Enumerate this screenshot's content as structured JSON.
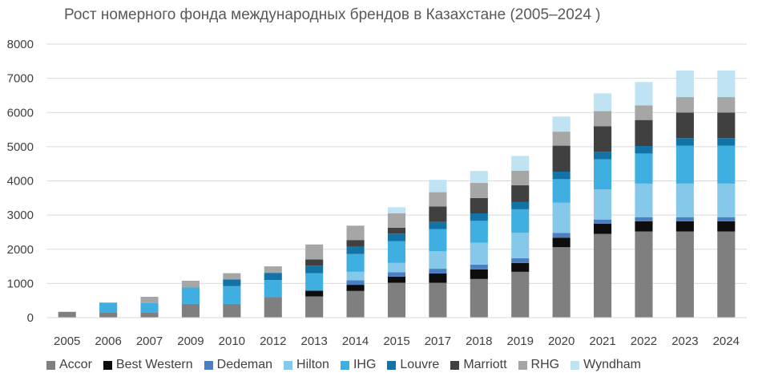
{
  "chart_data": {
    "type": "bar",
    "stacked": true,
    "title": "Рост номерного фонда международных брендов в Казахстане (2005–2024 )",
    "xlabel": "",
    "ylabel": "",
    "ylim": [
      0,
      8000
    ],
    "yticks": [
      0,
      1000,
      2000,
      3000,
      4000,
      5000,
      6000,
      7000,
      8000
    ],
    "grid": true,
    "legend_position": "bottom",
    "categories": [
      "2005",
      "2006",
      "2007",
      "2009",
      "2010",
      "2012",
      "2013",
      "2014",
      "2015",
      "2017",
      "2018",
      "2019",
      "2020",
      "2021",
      "2022",
      "2023",
      "2024"
    ],
    "series": [
      {
        "name": "Accor",
        "color": "#7f7f7f",
        "values": [
          170,
          150,
          150,
          400,
          400,
          600,
          620,
          780,
          1020,
          1020,
          1130,
          1340,
          2060,
          2450,
          2520,
          2520,
          2520
        ]
      },
      {
        "name": "Best Western",
        "color": "#0d0d0d",
        "values": [
          0,
          0,
          0,
          0,
          0,
          0,
          170,
          180,
          180,
          270,
          280,
          260,
          280,
          300,
          300,
          300,
          300
        ]
      },
      {
        "name": "Dedeman",
        "color": "#4a7fc1",
        "values": [
          0,
          0,
          0,
          0,
          0,
          0,
          0,
          130,
          130,
          140,
          140,
          140,
          140,
          120,
          120,
          120,
          120
        ]
      },
      {
        "name": "Hilton",
        "color": "#86c8ea",
        "values": [
          0,
          0,
          0,
          0,
          0,
          0,
          0,
          250,
          270,
          510,
          640,
          740,
          880,
          880,
          980,
          980,
          980
        ]
      },
      {
        "name": "IHG",
        "color": "#3faee0",
        "values": [
          0,
          290,
          280,
          480,
          520,
          500,
          510,
          520,
          640,
          650,
          640,
          690,
          690,
          880,
          880,
          1110,
          1110
        ]
      },
      {
        "name": "Louvre",
        "color": "#1273a6",
        "values": [
          0,
          0,
          0,
          0,
          200,
          210,
          220,
          210,
          220,
          210,
          220,
          220,
          220,
          220,
          220,
          220,
          220
        ]
      },
      {
        "name": "Marriott",
        "color": "#404040",
        "values": [
          0,
          0,
          0,
          0,
          0,
          0,
          180,
          200,
          170,
          450,
          450,
          480,
          760,
          750,
          760,
          750,
          750
        ]
      },
      {
        "name": "RHG",
        "color": "#a6a6a6",
        "values": [
          0,
          0,
          180,
          200,
          180,
          190,
          440,
          420,
          420,
          420,
          440,
          430,
          410,
          440,
          430,
          450,
          450
        ]
      },
      {
        "name": "Wyndham",
        "color": "#bfe3f3",
        "values": [
          0,
          0,
          0,
          0,
          0,
          0,
          0,
          0,
          180,
          360,
          350,
          430,
          440,
          520,
          680,
          780,
          780
        ]
      }
    ]
  }
}
